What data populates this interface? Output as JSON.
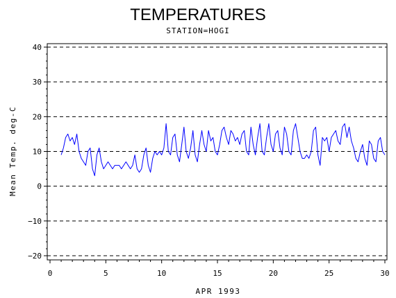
{
  "chart_data": {
    "type": "line",
    "title": "TEMPERATURES",
    "subtitle": "STATION=HOGI",
    "xlabel": "APR 1993",
    "ylabel": "Mean Temp. deg-C",
    "xlim": [
      0,
      30
    ],
    "ylim": [
      -20,
      40
    ],
    "xticks": [
      0,
      5,
      10,
      15,
      20,
      25,
      30
    ],
    "yticks": [
      -20,
      -10,
      0,
      10,
      20,
      30,
      40
    ],
    "grid": "horizontal dashed",
    "line_color": "#0000ff",
    "series": [
      {
        "x": [
          1.0,
          1.2,
          1.4,
          1.6,
          1.8,
          2.0,
          2.2,
          2.4,
          2.6,
          2.8,
          3.0,
          3.2,
          3.4,
          3.6,
          3.8,
          4.0,
          4.2,
          4.4,
          4.6,
          4.8,
          5.0,
          5.2,
          5.4,
          5.6,
          5.8,
          6.0,
          6.2,
          6.4,
          6.6,
          6.8,
          7.0,
          7.2,
          7.4,
          7.6,
          7.8,
          8.0,
          8.2,
          8.4,
          8.6,
          8.8,
          9.0,
          9.2,
          9.4,
          9.6,
          9.8,
          10.0,
          10.2,
          10.4,
          10.6,
          10.8,
          11.0,
          11.2,
          11.4,
          11.6,
          11.8,
          12.0,
          12.2,
          12.4,
          12.6,
          12.8,
          13.0,
          13.2,
          13.4,
          13.6,
          13.8,
          14.0,
          14.2,
          14.4,
          14.6,
          14.8,
          15.0,
          15.2,
          15.4,
          15.6,
          15.8,
          16.0,
          16.2,
          16.4,
          16.6,
          16.8,
          17.0,
          17.2,
          17.4,
          17.6,
          17.8,
          18.0,
          18.2,
          18.4,
          18.6,
          18.8,
          19.0,
          19.2,
          19.4,
          19.6,
          19.8,
          20.0,
          20.2,
          20.4,
          20.6,
          20.8,
          21.0,
          21.2,
          21.4,
          21.6,
          21.8,
          22.0,
          22.2,
          22.4,
          22.6,
          22.8,
          23.0,
          23.2,
          23.4,
          23.6,
          23.8,
          24.0,
          24.2,
          24.4,
          24.6,
          24.8,
          25.0,
          25.2,
          25.4,
          25.6,
          25.8,
          26.0,
          26.2,
          26.4,
          26.6,
          26.8,
          27.0,
          27.2,
          27.4,
          27.6,
          27.8,
          28.0,
          28.2,
          28.4,
          28.6,
          28.8,
          29.0,
          29.2,
          29.4,
          29.6,
          29.8,
          30.0
        ],
        "y": [
          9,
          11,
          14,
          15,
          13,
          14,
          12,
          15,
          10,
          8,
          7,
          6,
          10,
          11,
          5,
          3,
          9,
          11,
          7,
          5,
          6,
          7,
          6,
          5,
          6,
          6,
          6,
          5,
          6,
          7,
          6,
          5,
          6,
          9,
          5,
          4,
          5,
          9,
          11,
          6,
          4,
          8,
          10,
          9,
          10,
          9,
          11,
          18,
          10,
          9,
          14,
          15,
          9,
          7,
          12,
          17,
          10,
          8,
          11,
          16,
          9,
          7,
          12,
          16,
          12,
          10,
          16,
          13,
          14,
          10,
          9,
          12,
          16,
          17,
          14,
          12,
          16,
          15,
          13,
          14,
          12,
          15,
          16,
          10,
          9,
          17,
          12,
          9,
          14,
          18,
          10,
          9,
          14,
          18,
          12,
          10,
          15,
          16,
          11,
          9,
          17,
          15,
          10,
          9,
          16,
          18,
          14,
          10,
          8,
          8,
          9,
          8,
          10,
          16,
          17,
          9,
          6,
          14,
          13,
          14,
          10,
          14,
          15,
          16,
          13,
          12,
          17,
          18,
          14,
          17,
          13,
          11,
          8,
          7,
          10,
          12,
          8,
          6,
          13,
          12,
          8,
          7,
          13,
          14,
          10,
          9
        ]
      }
    ]
  }
}
